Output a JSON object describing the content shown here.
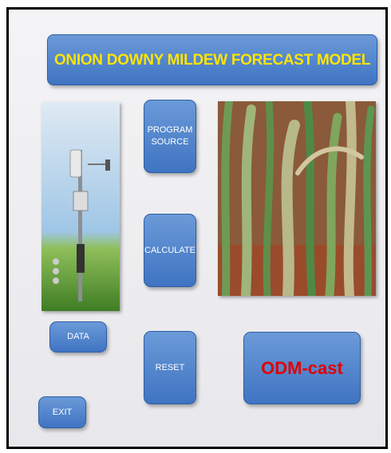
{
  "header": {
    "title": "ONION DOWNY MILDEW FORECAST MODEL"
  },
  "buttons": {
    "program_source": "PROGRAM SOURCE",
    "calculate": "CALCULATE",
    "reset": "RESET",
    "data": "DATA",
    "exit": "EXIT",
    "brand": "ODM-cast"
  }
}
